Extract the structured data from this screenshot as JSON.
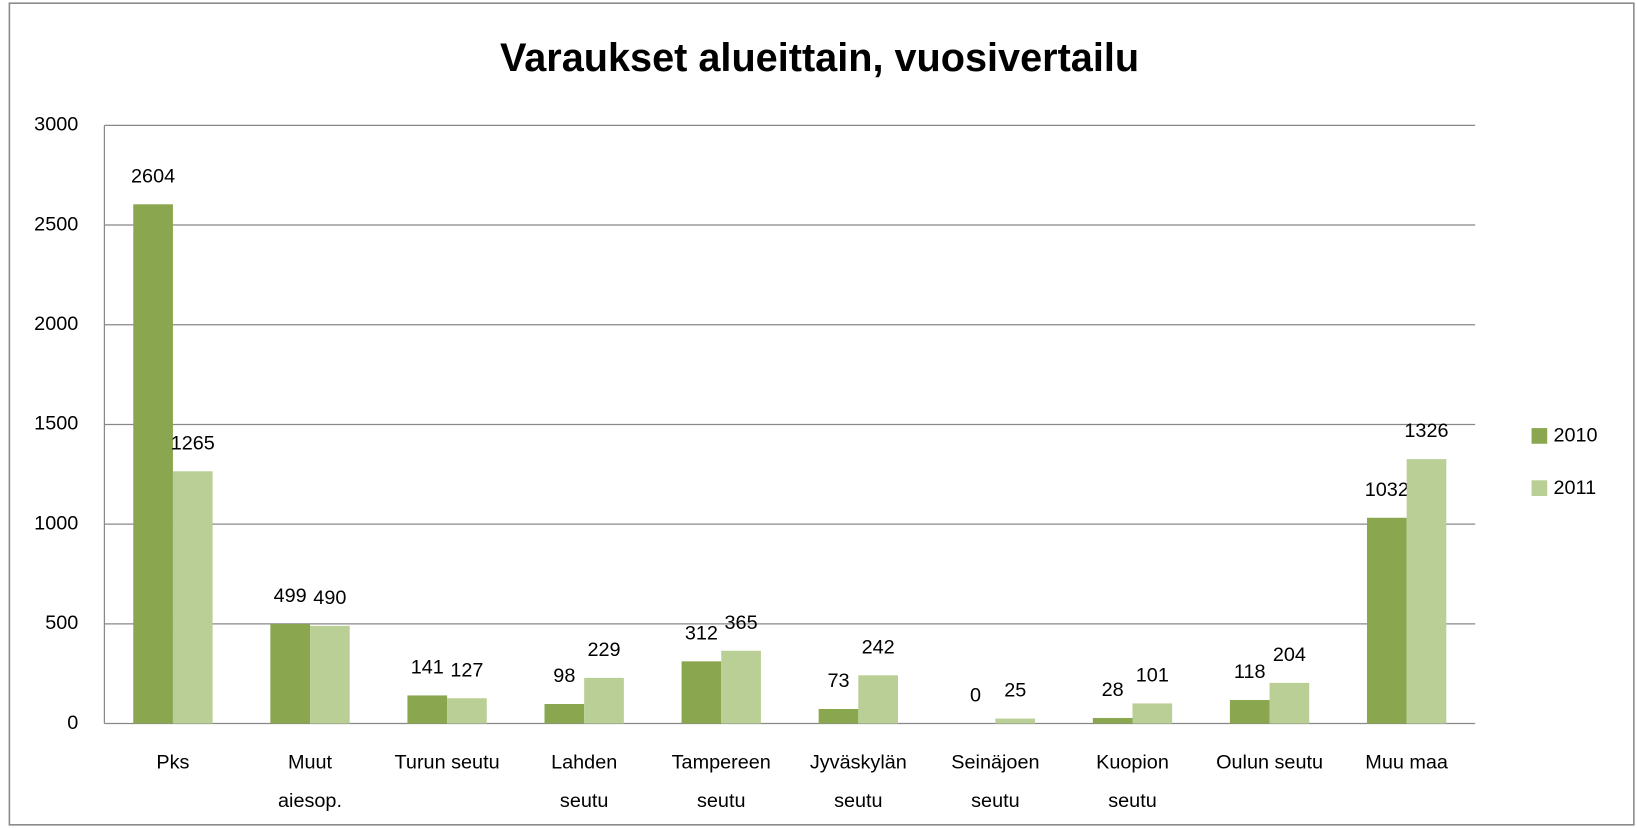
{
  "chart_data": {
    "type": "bar",
    "title": "Varaukset alueittain, vuosivertailu",
    "categories": [
      [
        "Pks"
      ],
      [
        "Muut",
        "aiesop."
      ],
      [
        "Turun seutu"
      ],
      [
        "Lahden",
        "seutu"
      ],
      [
        "Tampereen",
        "seutu"
      ],
      [
        "Jyväskylän",
        "seutu"
      ],
      [
        "Seinäjoen",
        "seutu"
      ],
      [
        "Kuopion",
        "seutu"
      ],
      [
        "Oulun seutu"
      ],
      [
        "Muu maa"
      ]
    ],
    "series": [
      {
        "name": "2010",
        "color": "#8aa64f",
        "values": [
          2604,
          499,
          141,
          98,
          312,
          73,
          0,
          28,
          118,
          1032
        ]
      },
      {
        "name": "2011",
        "color": "#b9cf95",
        "values": [
          1265,
          490,
          127,
          229,
          365,
          242,
          25,
          101,
          204,
          1326
        ]
      }
    ],
    "ylim": [
      0,
      3000
    ],
    "yticks": [
      0,
      500,
      1000,
      1500,
      2000,
      2500,
      3000
    ],
    "grid": true,
    "legend": "right"
  }
}
